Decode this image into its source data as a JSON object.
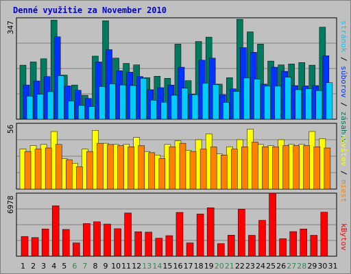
{
  "chart_data": {
    "title": "Denné využitie za November 2010",
    "type": "bar",
    "categories": [
      "1",
      "2",
      "3",
      "4",
      "5",
      "6",
      "7",
      "8",
      "9",
      "10",
      "11",
      "12",
      "13",
      "14",
      "15",
      "16",
      "17",
      "18",
      "19",
      "20",
      "21",
      "22",
      "23",
      "24",
      "25",
      "26",
      "27",
      "28",
      "29",
      "30",
      "31"
    ],
    "weekend_days": [
      6,
      7,
      13,
      14,
      20,
      21,
      27,
      28
    ],
    "panels": [
      {
        "name": "top",
        "ymax": 347,
        "ymax_label": "347",
        "legend": [
          {
            "label": "stránok",
            "color": "#00ccff"
          },
          {
            "label": "súborov",
            "color": "#0033ff"
          },
          {
            "label": "zásahov",
            "color": "#007a5e"
          }
        ],
        "series": [
          {
            "name": "zásahov",
            "color": "#007a5e",
            "values": [
              185,
              196,
              207,
              339,
              151,
              117,
              82,
              216,
              337,
              209,
              191,
              186,
              142,
              147,
              140,
              257,
              132,
              266,
              281,
              120,
              142,
              342,
              299,
              257,
              199,
              186,
              189,
              194,
              185,
              315,
              0
            ]
          },
          {
            "name": "súborov",
            "color": "#0033ff",
            "values": [
              117,
              131,
              146,
              282,
              114,
              99,
              71,
              196,
              238,
              166,
              161,
              146,
              101,
              108,
              117,
              178,
              86,
              202,
              209,
              84,
              104,
              245,
              229,
              120,
              178,
              164,
              115,
              114,
              115,
              217,
              0
            ]
          },
          {
            "name": "stránok",
            "color": "#00ccff",
            "values": [
              79,
              85,
              94,
              149,
              62,
              47,
              43,
              112,
              121,
              117,
              115,
              140,
              65,
              58,
              82,
              106,
              84,
              123,
              118,
              57,
              95,
              141,
              137,
              113,
              113,
              144,
              101,
              104,
              98,
              125,
              0
            ]
          }
        ]
      },
      {
        "name": "middle",
        "ymax": 56,
        "ymax_label": "56",
        "legend": [
          {
            "label": "návštev",
            "color": "#ffff00"
          },
          {
            "label": "miest",
            "color": "#ff8000"
          }
        ],
        "series": [
          {
            "name": "návštev",
            "color": "#ffff00",
            "values": [
              34,
              37,
              38,
              49,
              26,
              22,
              34,
              50,
              39,
              38,
              38,
              44,
              32,
              29,
              38,
              41,
              33,
              42,
              47,
              30,
              36,
              42,
              51,
              38,
              37,
              42,
              38,
              38,
              49,
              43,
              0
            ]
          },
          {
            "name": "miest",
            "color": "#ff8000",
            "values": [
              32,
              34,
              35,
              38,
              25,
              19,
              32,
              39,
              38,
              37,
              36,
              37,
              31,
              26,
              36,
              39,
              32,
              34,
              36,
              29,
              34,
              36,
              40,
              36,
              36,
              37,
              37,
              37,
              36,
              35,
              0
            ]
          }
        ]
      },
      {
        "name": "bottom",
        "ymax": 6978,
        "ymax_label": "6978",
        "legend": [
          {
            "label": "kBytov",
            "color": "#ff0000"
          }
        ],
        "series": [
          {
            "name": "kBytov",
            "color": "#ff0000",
            "values": [
              2188,
              2064,
              3018,
              5582,
              2962,
              1474,
              3618,
              3813,
              3563,
              3045,
              4787,
              2706,
              2666,
              1989,
              2275,
              4853,
              1474,
              4673,
              5366,
              1398,
              2331,
              5202,
              2314,
              3973,
              6978,
              1936,
              2725,
              3018,
              2314,
              4876,
              0
            ]
          }
        ]
      }
    ]
  }
}
